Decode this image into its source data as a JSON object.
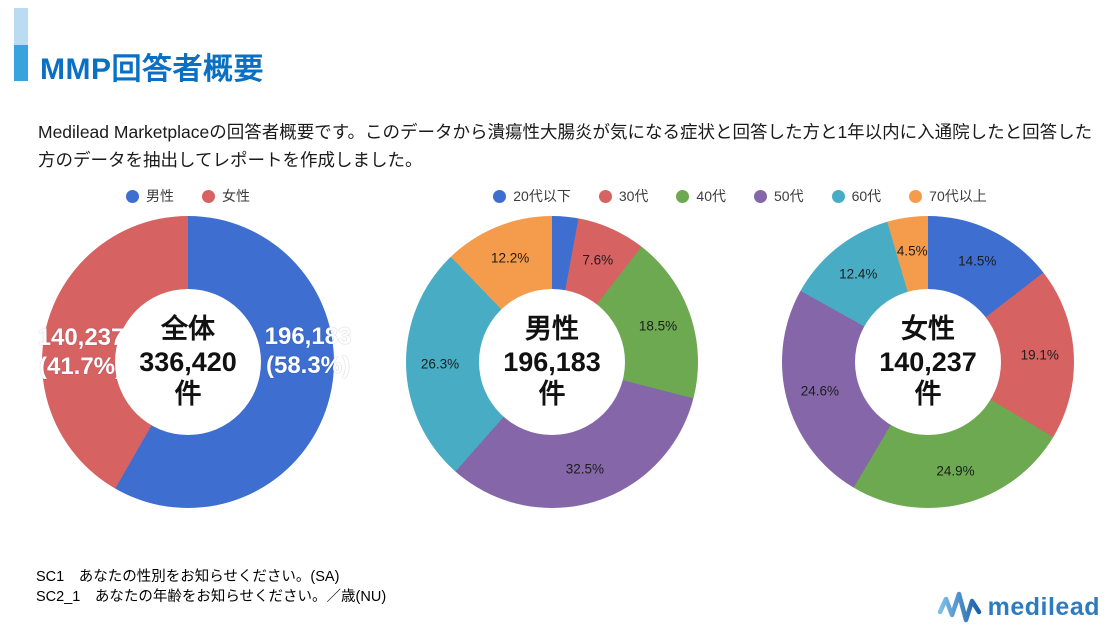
{
  "header": {
    "title": "MMP回答者概要",
    "title_color": "#0A70C4",
    "accent_light_color": "#B9DCF2",
    "accent_dark_color": "#38A3DC"
  },
  "intro": {
    "text": "Medilead Marketplaceの回答者概要です。このデータから潰瘍性大腸炎が気になる症状と回答した方と1年以内に入通院したと回答した方のデータを抽出してレポートを作成しました。"
  },
  "age_legend": [
    {
      "label": "20代以下",
      "color": "#3D6ED0"
    },
    {
      "label": "30代",
      "color": "#D66262"
    },
    {
      "label": "40代",
      "color": "#6CA951"
    },
    {
      "label": "50代",
      "color": "#8566A9"
    },
    {
      "label": "60代",
      "color": "#48ADC4"
    },
    {
      "label": "70代以上",
      "color": "#F59C4C"
    }
  ],
  "chart_data": [
    {
      "type": "pie",
      "subtype": "donut",
      "name": "gender-split-total",
      "center": {
        "group": "全体",
        "count": "336,420",
        "unit": "件"
      },
      "legend": [
        {
          "label": "男性",
          "color": "#3D6ED0"
        },
        {
          "label": "女性",
          "color": "#D66262"
        }
      ],
      "slices": [
        {
          "label": "男性",
          "value_pct": 58.3,
          "count": 196183,
          "color": "#3D6ED0",
          "data_label": "196,183\n(58.3%)",
          "label_xy": [
            266,
            136
          ]
        },
        {
          "label": "女性",
          "value_pct": 41.7,
          "count": 140237,
          "color": "#D66262",
          "data_label": "140,237\n(41.7%)",
          "label_xy": [
            39,
            137
          ]
        }
      ],
      "start_angle_deg": 0,
      "direction": "clockwise"
    },
    {
      "type": "pie",
      "subtype": "donut",
      "name": "age-split-male",
      "center": {
        "group": "男性",
        "count": "196,183",
        "unit": "件"
      },
      "slices": [
        {
          "label": "20代以下",
          "value_pct": 2.9,
          "color": "#3D6ED0",
          "label_visible": false
        },
        {
          "label": "30代",
          "value_pct": 7.6,
          "color": "#D66262",
          "data_label": "7.6%"
        },
        {
          "label": "40代",
          "value_pct": 18.5,
          "color": "#6CA951",
          "data_label": "18.5%"
        },
        {
          "label": "50代",
          "value_pct": 32.5,
          "color": "#8566A9",
          "data_label": "32.5%"
        },
        {
          "label": "60代",
          "value_pct": 26.3,
          "color": "#48ADC4",
          "data_label": "26.3%"
        },
        {
          "label": "70代以上",
          "value_pct": 12.2,
          "color": "#F59C4C",
          "data_label": "12.2%"
        }
      ],
      "start_angle_deg": 0,
      "direction": "clockwise"
    },
    {
      "type": "pie",
      "subtype": "donut",
      "name": "age-split-female",
      "center": {
        "group": "女性",
        "count": "140,237",
        "unit": "件"
      },
      "slices": [
        {
          "label": "20代以下",
          "value_pct": 14.5,
          "color": "#3D6ED0",
          "data_label": "14.5%"
        },
        {
          "label": "30代",
          "value_pct": 19.1,
          "color": "#D66262",
          "data_label": "19.1%"
        },
        {
          "label": "40代",
          "value_pct": 24.9,
          "color": "#6CA951",
          "data_label": "24.9%"
        },
        {
          "label": "50代",
          "value_pct": 24.6,
          "color": "#8566A9",
          "data_label": "24.6%"
        },
        {
          "label": "60代",
          "value_pct": 12.4,
          "color": "#48ADC4",
          "data_label": "12.4%"
        },
        {
          "label": "70代以上",
          "value_pct": 4.5,
          "color": "#F59C4C",
          "data_label": "4.5%"
        }
      ],
      "start_angle_deg": 0,
      "direction": "clockwise"
    }
  ],
  "footnotes": {
    "line1": "SC1　あなたの性別をお知らせください。(SA)",
    "line2": "SC2_1　あなたの年齢をお知らせください。／歳(NU)"
  },
  "logo": {
    "text": "medilead",
    "text_color": "#2E7CC0",
    "pulse_color_start": "#7FC0E8",
    "pulse_color_end": "#1E5FA9"
  }
}
